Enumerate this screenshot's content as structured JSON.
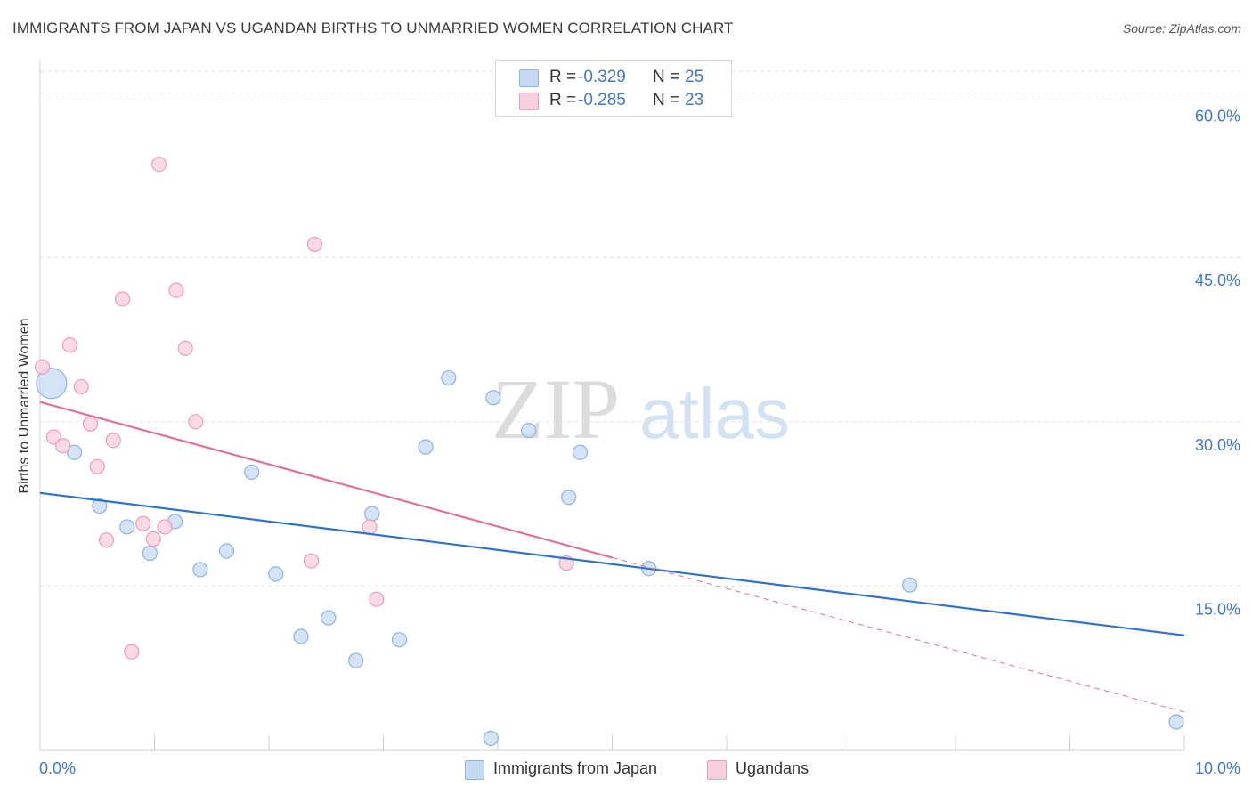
{
  "title": "IMMIGRANTS FROM JAPAN VS UGANDAN BIRTHS TO UNMARRIED WOMEN CORRELATION CHART",
  "source": "Source: ZipAtlas.com",
  "watermark": {
    "zip": "ZIP",
    "atlas": "atlas"
  },
  "legend": {
    "r_label": "R =",
    "n_label": "N =",
    "rows": [
      {
        "r": "-0.329",
        "n": "25"
      },
      {
        "r": "-0.285",
        "n": "23"
      }
    ]
  },
  "colors": {
    "blue_fill": "#c5d9f3",
    "blue_stroke": "#8db3e4",
    "blue_line": "#2f6fcf",
    "pink_fill": "#f8cfdc",
    "pink_stroke": "#ee9db6",
    "pink_line": "#e0709a",
    "tick_label": "#3d78cc"
  },
  "chart_data": {
    "type": "scatter",
    "xlabel": "",
    "ylabel": "Births to Unmarried Women",
    "xlim": [
      0,
      10
    ],
    "ylim": [
      0,
      62
    ],
    "y_ticks": [
      15,
      30,
      45,
      60
    ],
    "y_tick_labels": [
      "15.0%",
      "30.0%",
      "45.0%",
      "60.0%"
    ],
    "x_tick_labels": {
      "min": "0.0%",
      "max": "10.0%"
    },
    "grid": true,
    "series": [
      {
        "name": "Immigrants from Japan",
        "color": "blue",
        "points": [
          {
            "x": 0.1,
            "y": 33.5,
            "big": true
          },
          {
            "x": 0.3,
            "y": 27.2
          },
          {
            "x": 0.52,
            "y": 22.3
          },
          {
            "x": 0.76,
            "y": 20.4
          },
          {
            "x": 0.96,
            "y": 18.0
          },
          {
            "x": 1.18,
            "y": 20.9
          },
          {
            "x": 1.4,
            "y": 16.5
          },
          {
            "x": 1.63,
            "y": 18.2
          },
          {
            "x": 1.85,
            "y": 25.4
          },
          {
            "x": 2.06,
            "y": 16.1
          },
          {
            "x": 2.28,
            "y": 10.4
          },
          {
            "x": 2.52,
            "y": 12.1
          },
          {
            "x": 2.76,
            "y": 8.2
          },
          {
            "x": 2.9,
            "y": 21.6
          },
          {
            "x": 3.14,
            "y": 10.1
          },
          {
            "x": 3.37,
            "y": 27.7
          },
          {
            "x": 3.57,
            "y": 34.0
          },
          {
            "x": 3.94,
            "y": 1.1
          },
          {
            "x": 3.96,
            "y": 32.2
          },
          {
            "x": 4.27,
            "y": 29.2
          },
          {
            "x": 4.62,
            "y": 23.1
          },
          {
            "x": 4.72,
            "y": 27.2
          },
          {
            "x": 5.32,
            "y": 16.6
          },
          {
            "x": 7.6,
            "y": 15.1
          },
          {
            "x": 9.93,
            "y": 2.6
          }
        ],
        "trend": {
          "x0": 0,
          "y0": 23.5,
          "x1": 10,
          "y1": 10.5
        }
      },
      {
        "name": "Ugandans",
        "color": "pink",
        "points": [
          {
            "x": 0.02,
            "y": 35.0
          },
          {
            "x": 0.12,
            "y": 28.6
          },
          {
            "x": 0.2,
            "y": 27.8
          },
          {
            "x": 0.26,
            "y": 37.0
          },
          {
            "x": 0.36,
            "y": 33.2
          },
          {
            "x": 0.44,
            "y": 29.8
          },
          {
            "x": 0.5,
            "y": 25.9
          },
          {
            "x": 0.58,
            "y": 19.2
          },
          {
            "x": 0.64,
            "y": 28.3
          },
          {
            "x": 0.72,
            "y": 41.2
          },
          {
            "x": 0.8,
            "y": 9.0
          },
          {
            "x": 0.9,
            "y": 20.7
          },
          {
            "x": 0.99,
            "y": 19.3
          },
          {
            "x": 1.04,
            "y": 53.5
          },
          {
            "x": 1.09,
            "y": 20.4
          },
          {
            "x": 1.19,
            "y": 42.0
          },
          {
            "x": 1.27,
            "y": 36.7
          },
          {
            "x": 1.36,
            "y": 30.0
          },
          {
            "x": 2.37,
            "y": 17.3
          },
          {
            "x": 2.4,
            "y": 46.2
          },
          {
            "x": 2.88,
            "y": 20.4
          },
          {
            "x": 2.94,
            "y": 13.8
          },
          {
            "x": 4.6,
            "y": 17.1
          }
        ],
        "trend": {
          "x0": 0,
          "y0": 31.8,
          "x1": 5.0,
          "y1": 17.6,
          "dash_x1": 10,
          "dash_y1": 3.5
        }
      }
    ]
  }
}
